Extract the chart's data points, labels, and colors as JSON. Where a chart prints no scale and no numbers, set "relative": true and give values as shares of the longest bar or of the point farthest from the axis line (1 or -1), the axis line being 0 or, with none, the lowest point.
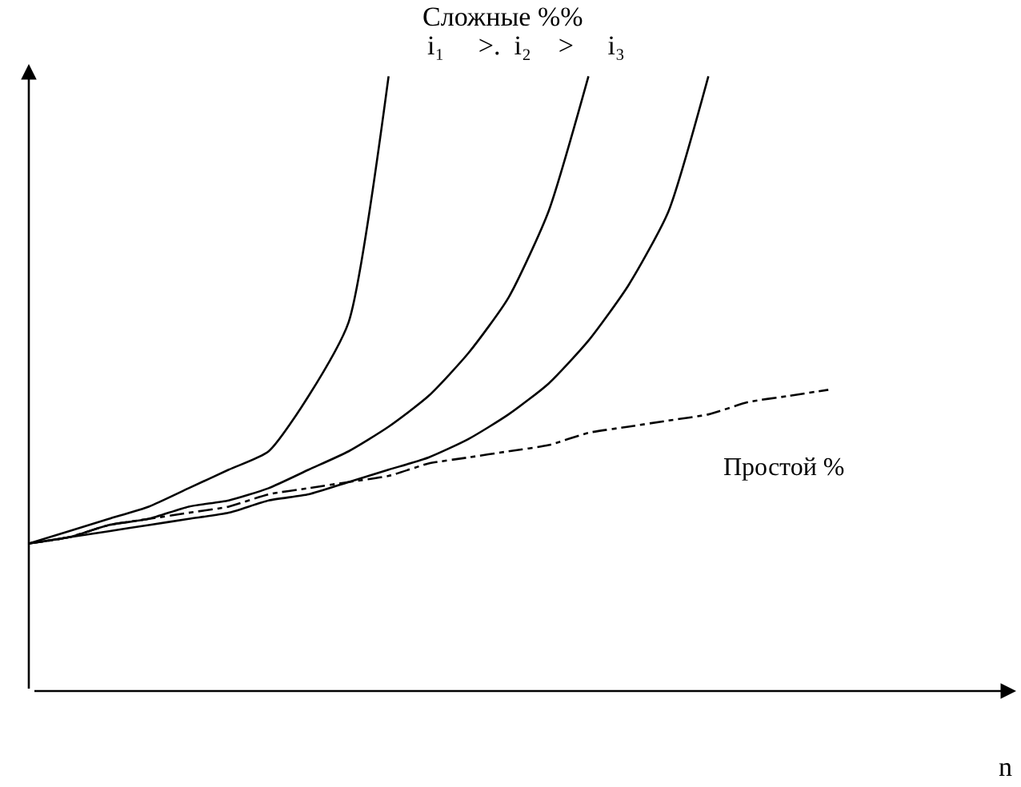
{
  "chart_data": {
    "type": "line",
    "relative": true,
    "title": "Сложные %%",
    "subtitle": "i₁     >.  i₂    >     i₃",
    "xlabel": "n",
    "annotations": [
      "Простой %"
    ],
    "categories": [
      null,
      null,
      null,
      null,
      null,
      null,
      null,
      null,
      null,
      null,
      null,
      null,
      null,
      null,
      null,
      null,
      null,
      null,
      null,
      null,
      null,
      null,
      null,
      null,
      null
    ],
    "series": [
      {
        "color": "#000000",
        "line_style": "solid",
        "values": [
          0.24,
          0.26,
          0.28,
          0.3,
          0.33,
          0.36,
          0.39,
          0.48,
          0.6,
          1.0,
          null,
          null,
          null,
          null,
          null,
          null,
          null,
          null,
          null,
          null,
          null,
          null,
          null,
          null,
          null
        ]
      },
      {
        "color": "#000000",
        "line_style": "solid",
        "values": [
          0.24,
          0.25,
          0.27,
          0.28,
          0.3,
          0.31,
          0.33,
          0.36,
          0.39,
          0.43,
          0.48,
          0.55,
          0.64,
          0.78,
          1.0,
          null,
          null,
          null,
          null,
          null,
          null,
          null,
          null,
          null,
          null
        ]
      },
      {
        "color": "#000000",
        "line_style": "solid",
        "values": [
          0.24,
          0.25,
          0.26,
          0.27,
          0.28,
          0.29,
          0.31,
          0.32,
          0.34,
          0.36,
          0.38,
          0.41,
          0.45,
          0.5,
          0.57,
          0.66,
          0.78,
          1.0,
          null,
          null,
          null,
          null,
          null,
          null,
          null
        ]
      },
      {
        "color": "#000000",
        "line_style": "dashed",
        "values": [
          0.24,
          0.25,
          0.27,
          0.28,
          0.29,
          0.3,
          0.32,
          0.33,
          0.34,
          0.35,
          0.37,
          0.38,
          0.39,
          0.4,
          0.42,
          0.43,
          0.44,
          0.45,
          0.47,
          0.48,
          0.49,
          null,
          null,
          null,
          null
        ]
      }
    ],
    "marker": "none"
  }
}
